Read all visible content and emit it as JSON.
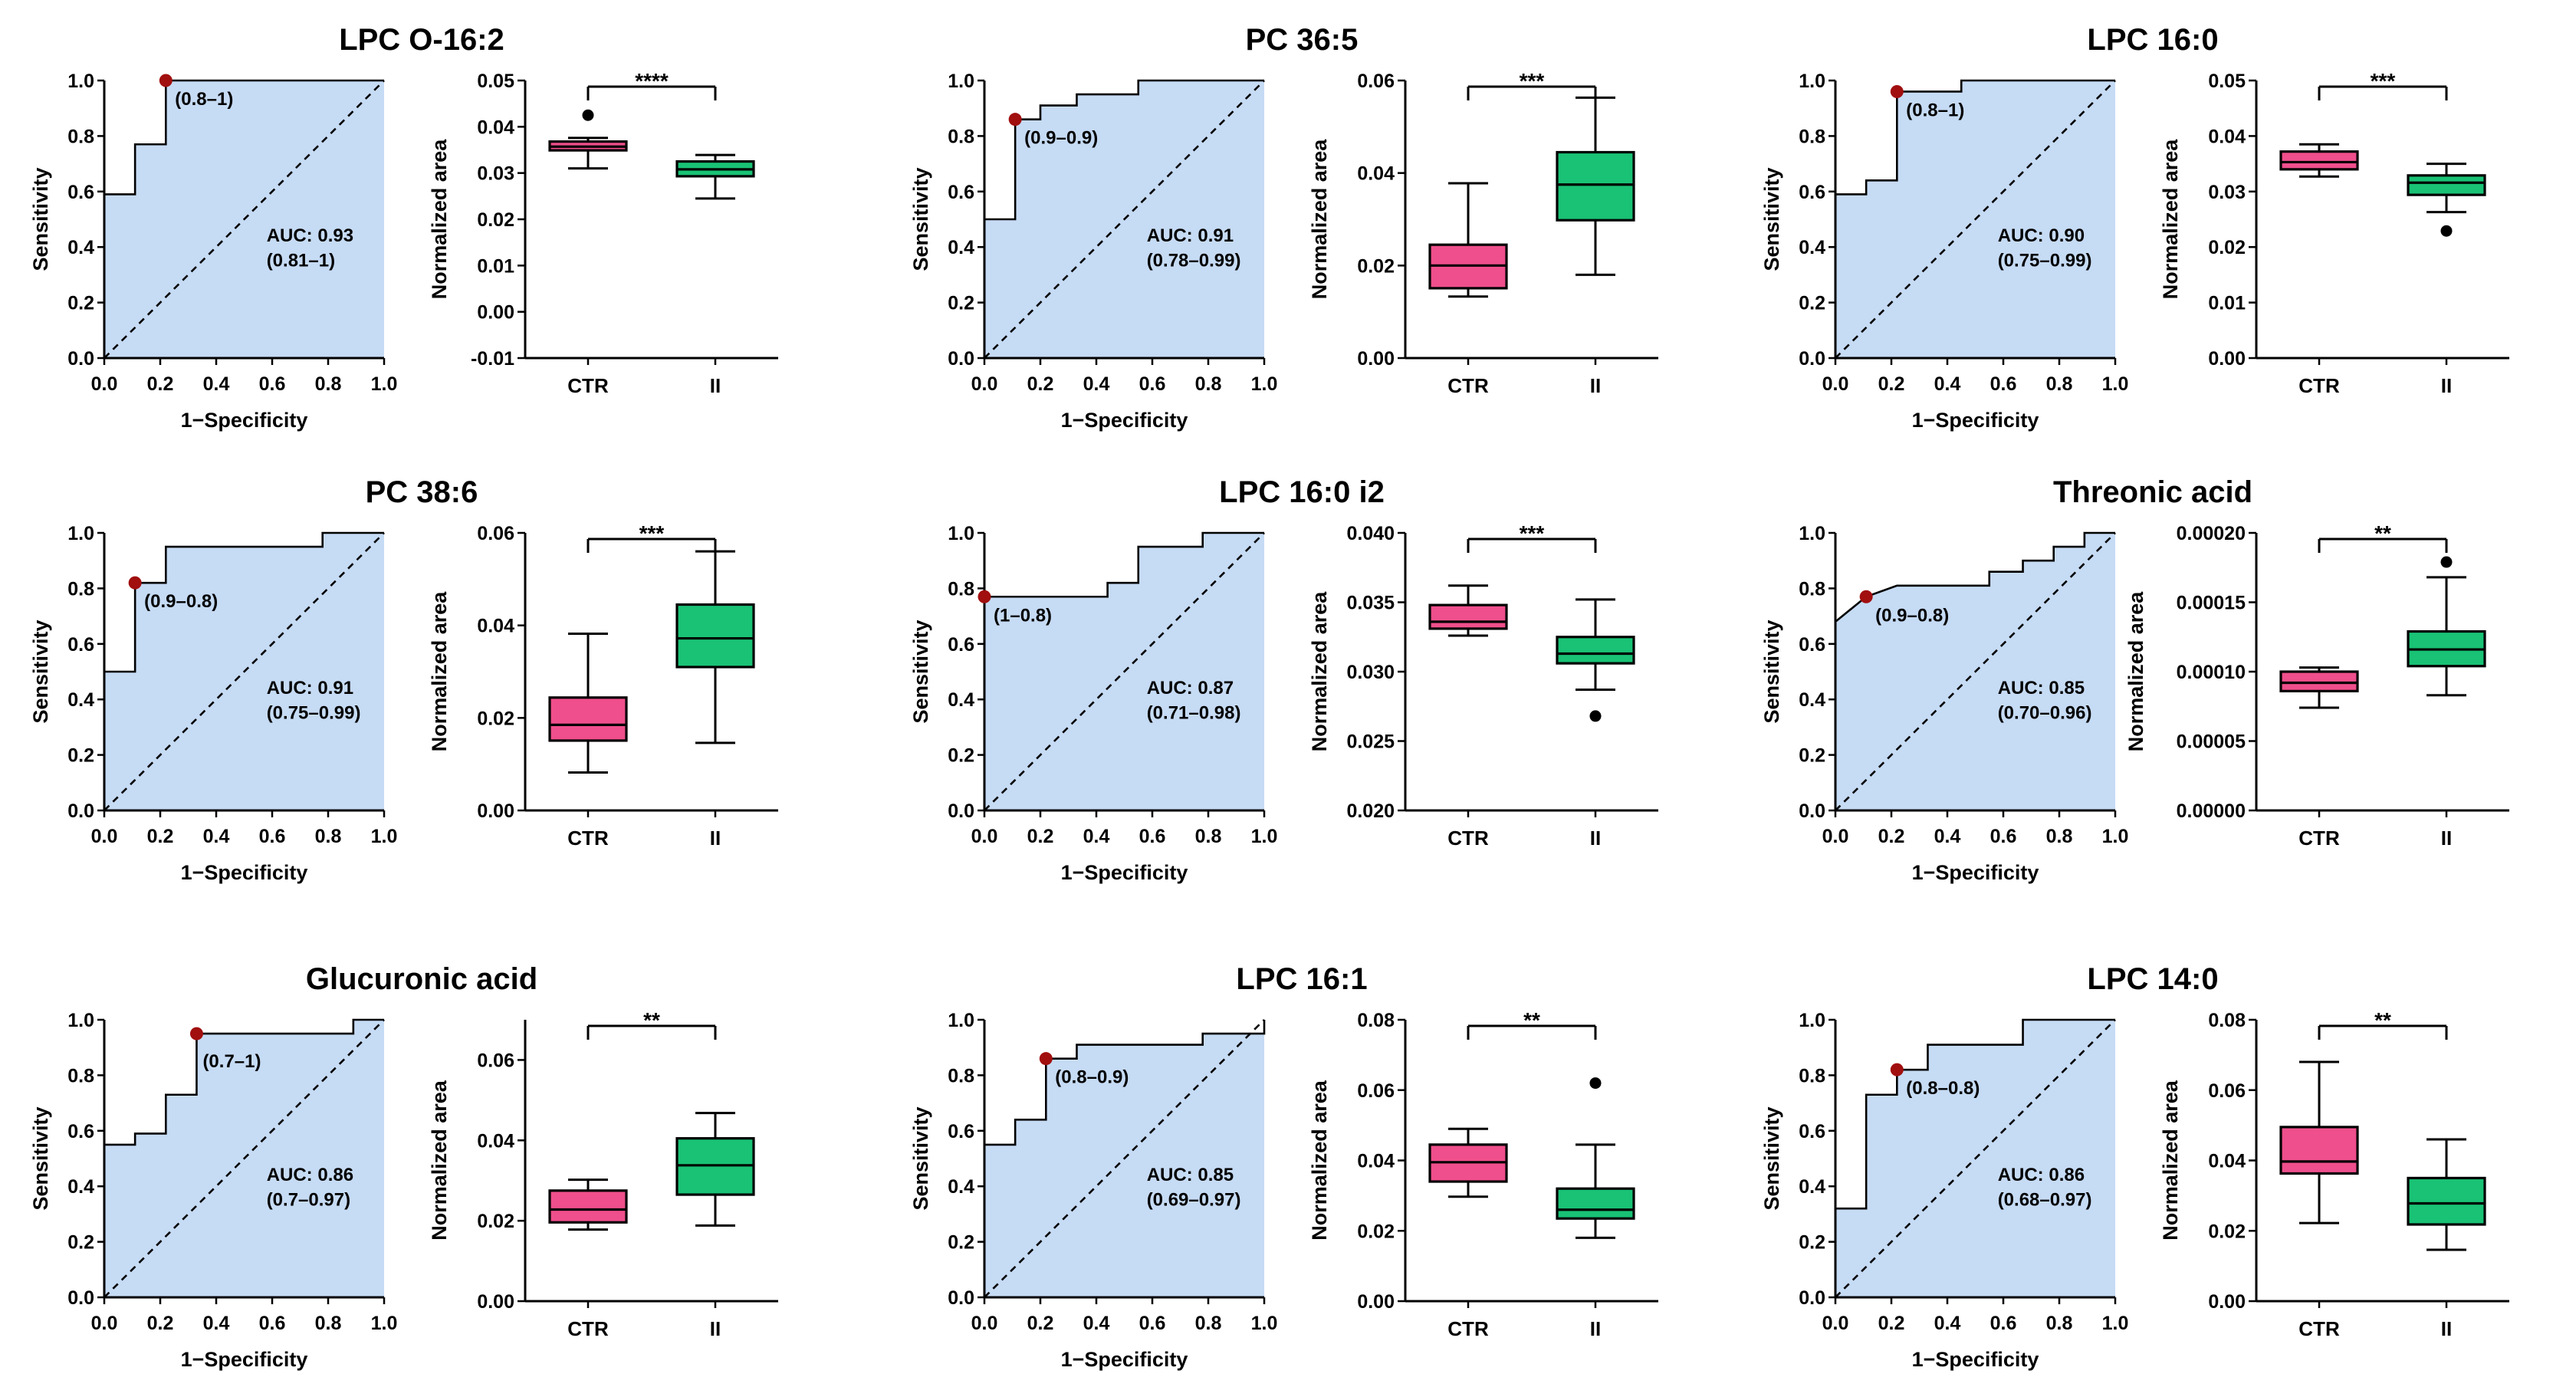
{
  "colors": {
    "roc_fill": "#c6dbf4",
    "cutoff_point": "#a10f0f",
    "ctr_box": "#ef4f8c",
    "ii_box": "#19c275",
    "line": "#000000"
  },
  "chart_data": [
    {
      "type": "roc+boxplot",
      "title": "LPC O-16:2",
      "roc": {
        "xlabel": "1−Specificity",
        "ylabel": "Sensitivity",
        "xlim": [
          0,
          1
        ],
        "ylim": [
          0,
          1
        ],
        "ticks": [
          "0.0",
          "0.2",
          "0.4",
          "0.6",
          "0.8",
          "1.0"
        ],
        "curve": [
          [
            0,
            0.59
          ],
          [
            0.11,
            0.59
          ],
          [
            0.11,
            0.77
          ],
          [
            0.22,
            0.77
          ],
          [
            0.22,
            1.0
          ],
          [
            1,
            1
          ]
        ],
        "cutoff": [
          0.22,
          1.0
        ],
        "cutoff_label": "(0.8–1)",
        "cutoff_label_side": "right",
        "auc_text": "AUC: 0.93",
        "ci_text": "(0.81–1)"
      },
      "box": {
        "ylabel": "Normalized area",
        "categories": [
          "CTR",
          "II"
        ],
        "ylim": [
          -0.01,
          0.05
        ],
        "yticks": [
          -0.01,
          0,
          0.01,
          0.02,
          0.03,
          0.04,
          0.05
        ],
        "ytick_labels": [
          "-0.01",
          "0.00",
          "0.01",
          "0.02",
          "0.03",
          "0.04",
          "0.05"
        ],
        "groups": [
          {
            "min": 0.031,
            "q1": 0.0349,
            "median": 0.0357,
            "q3": 0.0368,
            "max": 0.0376,
            "outliers": [
              0.0425
            ]
          },
          {
            "min": 0.0245,
            "q1": 0.0293,
            "median": 0.0308,
            "q3": 0.0325,
            "max": 0.0339,
            "outliers": []
          }
        ],
        "significance": "****"
      }
    },
    {
      "type": "roc+boxplot",
      "title": "PC 36:5",
      "roc": {
        "xlabel": "1−Specificity",
        "ylabel": "Sensitivity",
        "xlim": [
          0,
          1
        ],
        "ylim": [
          0,
          1
        ],
        "ticks": [
          "0.0",
          "0.2",
          "0.4",
          "0.6",
          "0.8",
          "1.0"
        ],
        "curve": [
          [
            0,
            0.5
          ],
          [
            0.11,
            0.5
          ],
          [
            0.11,
            0.86
          ],
          [
            0.2,
            0.86
          ],
          [
            0.2,
            0.91
          ],
          [
            0.33,
            0.91
          ],
          [
            0.33,
            0.95
          ],
          [
            0.55,
            0.95
          ],
          [
            0.55,
            1.0
          ],
          [
            1,
            1
          ]
        ],
        "cutoff": [
          0.11,
          0.86
        ],
        "cutoff_label": "(0.9–0.9)",
        "cutoff_label_side": "right",
        "auc_text": "AUC: 0.91",
        "ci_text": "(0.78–0.99)"
      },
      "box": {
        "ylabel": "Normalized area",
        "categories": [
          "CTR",
          "II"
        ],
        "ylim": [
          0,
          0.06
        ],
        "yticks": [
          0,
          0.02,
          0.04,
          0.06
        ],
        "ytick_labels": [
          "0.00",
          "0.02",
          "0.04",
          "0.06"
        ],
        "groups": [
          {
            "min": 0.0133,
            "q1": 0.0151,
            "median": 0.02,
            "q3": 0.0245,
            "max": 0.0378,
            "outliers": []
          },
          {
            "min": 0.018,
            "q1": 0.0298,
            "median": 0.0375,
            "q3": 0.0445,
            "max": 0.0563,
            "outliers": []
          }
        ],
        "significance": "***"
      }
    },
    {
      "type": "roc+boxplot",
      "title": "LPC 16:0",
      "roc": {
        "xlabel": "1−Specificity",
        "ylabel": "Sensitivity",
        "xlim": [
          0,
          1
        ],
        "ylim": [
          0,
          1
        ],
        "ticks": [
          "0.0",
          "0.2",
          "0.4",
          "0.6",
          "0.8",
          "1.0"
        ],
        "curve": [
          [
            0,
            0.59
          ],
          [
            0.11,
            0.59
          ],
          [
            0.11,
            0.64
          ],
          [
            0.22,
            0.64
          ],
          [
            0.22,
            0.96
          ],
          [
            0.45,
            0.96
          ],
          [
            0.45,
            1.0
          ],
          [
            1,
            1
          ]
        ],
        "cutoff": [
          0.22,
          0.96
        ],
        "cutoff_label": "(0.8–1)",
        "cutoff_label_side": "right",
        "auc_text": "AUC: 0.90",
        "ci_text": "(0.75–0.99)"
      },
      "box": {
        "ylabel": "Normalized area",
        "categories": [
          "CTR",
          "II"
        ],
        "ylim": [
          0,
          0.05
        ],
        "yticks": [
          0,
          0.01,
          0.02,
          0.03,
          0.04,
          0.05
        ],
        "ytick_labels": [
          "0.00",
          "0.01",
          "0.02",
          "0.03",
          "0.04",
          "0.05"
        ],
        "groups": [
          {
            "min": 0.0327,
            "q1": 0.034,
            "median": 0.0353,
            "q3": 0.0372,
            "max": 0.0385,
            "outliers": []
          },
          {
            "min": 0.0263,
            "q1": 0.0294,
            "median": 0.0316,
            "q3": 0.0329,
            "max": 0.035,
            "outliers": [
              0.0229
            ]
          }
        ],
        "significance": "***"
      }
    },
    {
      "type": "roc+boxplot",
      "title": "PC 38:6",
      "roc": {
        "xlabel": "1−Specificity",
        "ylabel": "Sensitivity",
        "xlim": [
          0,
          1
        ],
        "ylim": [
          0,
          1
        ],
        "ticks": [
          "0.0",
          "0.2",
          "0.4",
          "0.6",
          "0.8",
          "1.0"
        ],
        "curve": [
          [
            0,
            0.5
          ],
          [
            0.11,
            0.5
          ],
          [
            0.11,
            0.82
          ],
          [
            0.22,
            0.82
          ],
          [
            0.22,
            0.95
          ],
          [
            0.78,
            0.95
          ],
          [
            0.78,
            1.0
          ],
          [
            1,
            1
          ]
        ],
        "cutoff": [
          0.11,
          0.82
        ],
        "cutoff_label": "(0.9–0.8)",
        "cutoff_label_side": "right",
        "auc_text": "AUC: 0.91",
        "ci_text": "(0.75–0.99)"
      },
      "box": {
        "ylabel": "Normalized area",
        "categories": [
          "CTR",
          "II"
        ],
        "ylim": [
          0,
          0.06
        ],
        "yticks": [
          0,
          0.02,
          0.04,
          0.06
        ],
        "ytick_labels": [
          "0.00",
          "0.02",
          "0.04",
          "0.06"
        ],
        "groups": [
          {
            "min": 0.0082,
            "q1": 0.0151,
            "median": 0.0185,
            "q3": 0.0244,
            "max": 0.0382,
            "outliers": []
          },
          {
            "min": 0.0146,
            "q1": 0.031,
            "median": 0.0372,
            "q3": 0.0445,
            "max": 0.056,
            "outliers": []
          }
        ],
        "significance": "***"
      }
    },
    {
      "type": "roc+boxplot",
      "title": "LPC 16:0 i2",
      "roc": {
        "xlabel": "1−Specificity",
        "ylabel": "Sensitivity",
        "xlim": [
          0,
          1
        ],
        "ylim": [
          0,
          1
        ],
        "ticks": [
          "0.0",
          "0.2",
          "0.4",
          "0.6",
          "0.8",
          "1.0"
        ],
        "curve": [
          [
            0,
            0.77
          ],
          [
            0.44,
            0.77
          ],
          [
            0.44,
            0.82
          ],
          [
            0.55,
            0.82
          ],
          [
            0.55,
            0.95
          ],
          [
            0.78,
            0.95
          ],
          [
            0.78,
            1.0
          ],
          [
            1,
            1
          ]
        ],
        "cutoff": [
          0,
          0.77
        ],
        "cutoff_label": "(1–0.8)",
        "cutoff_label_side": "right",
        "auc_text": "AUC: 0.87",
        "ci_text": "(0.71–0.98)"
      },
      "box": {
        "ylabel": "Normalized area",
        "categories": [
          "CTR",
          "II"
        ],
        "ylim": [
          0.02,
          0.04
        ],
        "yticks": [
          0.02,
          0.025,
          0.03,
          0.035,
          0.04
        ],
        "ytick_labels": [
          "0.020",
          "0.025",
          "0.030",
          "0.035",
          "0.040"
        ],
        "groups": [
          {
            "min": 0.0326,
            "q1": 0.0331,
            "median": 0.0336,
            "q3": 0.0348,
            "max": 0.0362,
            "outliers": []
          },
          {
            "min": 0.0287,
            "q1": 0.0306,
            "median": 0.0313,
            "q3": 0.0325,
            "max": 0.0352,
            "outliers": [
              0.0268
            ]
          }
        ],
        "significance": "***"
      }
    },
    {
      "type": "roc+boxplot",
      "title": "Threonic acid",
      "roc": {
        "xlabel": "1−Specificity",
        "ylabel": "Sensitivity",
        "xlim": [
          0,
          1
        ],
        "ylim": [
          0,
          1
        ],
        "ticks": [
          "0.0",
          "0.2",
          "0.4",
          "0.6",
          "0.8",
          "1.0"
        ],
        "curve": [
          [
            0,
            0.68
          ],
          [
            0.11,
            0.77
          ],
          [
            0.22,
            0.81
          ],
          [
            0.55,
            0.81
          ],
          [
            0.55,
            0.86
          ],
          [
            0.67,
            0.86
          ],
          [
            0.67,
            0.9
          ],
          [
            0.78,
            0.9
          ],
          [
            0.78,
            0.95
          ],
          [
            0.89,
            0.95
          ],
          [
            0.89,
            1.0
          ],
          [
            1,
            1
          ]
        ],
        "cutoff": [
          0.11,
          0.77
        ],
        "cutoff_label": "(0.9–0.8)",
        "cutoff_label_side": "right",
        "auc_text": "AUC: 0.85",
        "ci_text": "(0.70–0.96)"
      },
      "box": {
        "ylabel": "Normalized area",
        "categories": [
          "CTR",
          "II"
        ],
        "ylim": [
          0,
          0.0002
        ],
        "yticks": [
          0,
          5e-05,
          0.0001,
          0.00015,
          0.0002
        ],
        "ytick_labels": [
          "0.00000",
          "0.00005",
          "0.00010",
          "0.00015",
          "0.00020"
        ],
        "groups": [
          {
            "min": 7.4e-05,
            "q1": 8.6e-05,
            "median": 9.2e-05,
            "q3": 0.0001,
            "max": 0.000103,
            "outliers": []
          },
          {
            "min": 8.3e-05,
            "q1": 0.000104,
            "median": 0.000116,
            "q3": 0.000129,
            "max": 0.000168,
            "outliers": [
              0.000179
            ]
          }
        ],
        "significance": "**"
      }
    },
    {
      "type": "roc+boxplot",
      "title": "Glucuronic acid",
      "roc": {
        "xlabel": "1−Specificity",
        "ylabel": "Sensitivity",
        "xlim": [
          0,
          1
        ],
        "ylim": [
          0,
          1
        ],
        "ticks": [
          "0.0",
          "0.2",
          "0.4",
          "0.6",
          "0.8",
          "1.0"
        ],
        "curve": [
          [
            0,
            0.55
          ],
          [
            0.11,
            0.55
          ],
          [
            0.11,
            0.59
          ],
          [
            0.22,
            0.59
          ],
          [
            0.22,
            0.73
          ],
          [
            0.33,
            0.73
          ],
          [
            0.33,
            0.95
          ],
          [
            0.89,
            0.95
          ],
          [
            0.89,
            1.0
          ],
          [
            1,
            1
          ]
        ],
        "cutoff": [
          0.33,
          0.95
        ],
        "cutoff_label": "(0.7–1)",
        "cutoff_label_side": "below",
        "auc_text": "AUC: 0.86",
        "ci_text": "(0.7–0.97)"
      },
      "box": {
        "ylabel": "Normalized area",
        "categories": [
          "CTR",
          "II"
        ],
        "ylim": [
          0,
          0.07
        ],
        "yticks": [
          0,
          0.02,
          0.04,
          0.06
        ],
        "ytick_labels": [
          "0.00",
          "0.02",
          "0.04",
          "0.06"
        ],
        "groups": [
          {
            "min": 0.0178,
            "q1": 0.0196,
            "median": 0.0228,
            "q3": 0.0275,
            "max": 0.0302,
            "outliers": []
          },
          {
            "min": 0.0188,
            "q1": 0.0265,
            "median": 0.0338,
            "q3": 0.0405,
            "max": 0.0468,
            "outliers": []
          }
        ],
        "significance": "**"
      }
    },
    {
      "type": "roc+boxplot",
      "title": "LPC 16:1",
      "roc": {
        "xlabel": "1−Specificity",
        "ylabel": "Sensitivity",
        "xlim": [
          0,
          1
        ],
        "ylim": [
          0,
          1
        ],
        "ticks": [
          "0.0",
          "0.2",
          "0.4",
          "0.6",
          "0.8",
          "1.0"
        ],
        "curve": [
          [
            0,
            0.55
          ],
          [
            0.11,
            0.55
          ],
          [
            0.11,
            0.64
          ],
          [
            0.22,
            0.64
          ],
          [
            0.22,
            0.86
          ],
          [
            0.33,
            0.86
          ],
          [
            0.33,
            0.91
          ],
          [
            0.78,
            0.91
          ],
          [
            0.78,
            0.95
          ],
          [
            1,
            0.95
          ],
          [
            1,
            1
          ]
        ],
        "cutoff": [
          0.22,
          0.86
        ],
        "cutoff_label": "(0.8–0.9)",
        "cutoff_label_side": "right",
        "auc_text": "AUC: 0.85",
        "ci_text": "(0.69–0.97)"
      },
      "box": {
        "ylabel": "Normalized area",
        "categories": [
          "CTR",
          "II"
        ],
        "ylim": [
          0,
          0.08
        ],
        "yticks": [
          0,
          0.02,
          0.04,
          0.06,
          0.08
        ],
        "ytick_labels": [
          "0.00",
          "0.02",
          "0.04",
          "0.06",
          "0.08"
        ],
        "groups": [
          {
            "min": 0.0297,
            "q1": 0.034,
            "median": 0.0395,
            "q3": 0.0445,
            "max": 0.049,
            "outliers": []
          },
          {
            "min": 0.018,
            "q1": 0.0235,
            "median": 0.026,
            "q3": 0.032,
            "max": 0.0445,
            "outliers": [
              0.062
            ]
          }
        ],
        "significance": "**"
      }
    },
    {
      "type": "roc+boxplot",
      "title": "LPC 14:0",
      "roc": {
        "xlabel": "1−Specificity",
        "ylabel": "Sensitivity",
        "xlim": [
          0,
          1
        ],
        "ylim": [
          0,
          1
        ],
        "ticks": [
          "0.0",
          "0.2",
          "0.4",
          "0.6",
          "0.8",
          "1.0"
        ],
        "curve": [
          [
            0,
            0.32
          ],
          [
            0.11,
            0.32
          ],
          [
            0.11,
            0.73
          ],
          [
            0.22,
            0.73
          ],
          [
            0.22,
            0.82
          ],
          [
            0.33,
            0.82
          ],
          [
            0.33,
            0.91
          ],
          [
            0.67,
            0.91
          ],
          [
            0.67,
            1.0
          ],
          [
            1,
            1
          ]
        ],
        "cutoff": [
          0.22,
          0.82
        ],
        "cutoff_label": "(0.8–0.8)",
        "cutoff_label_side": "right",
        "auc_text": "AUC: 0.86",
        "ci_text": "(0.68–0.97)"
      },
      "box": {
        "ylabel": "Normalized area",
        "categories": [
          "CTR",
          "II"
        ],
        "ylim": [
          0,
          0.08
        ],
        "yticks": [
          0,
          0.02,
          0.04,
          0.06,
          0.08
        ],
        "ytick_labels": [
          "0.00",
          "0.02",
          "0.04",
          "0.06",
          "0.08"
        ],
        "groups": [
          {
            "min": 0.0222,
            "q1": 0.0363,
            "median": 0.0397,
            "q3": 0.0495,
            "max": 0.068,
            "outliers": []
          },
          {
            "min": 0.0146,
            "q1": 0.0218,
            "median": 0.0278,
            "q3": 0.035,
            "max": 0.046,
            "outliers": []
          }
        ],
        "significance": "**"
      }
    }
  ]
}
